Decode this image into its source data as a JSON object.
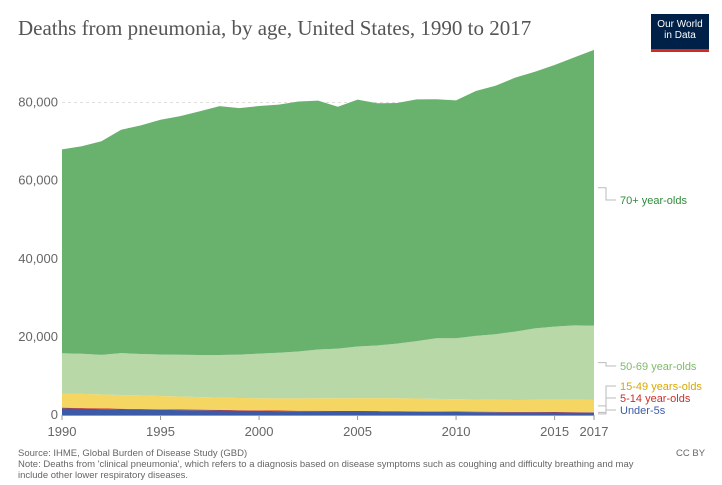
{
  "title": "Deaths from pneumonia, by age, United States, 1990 to 2017",
  "logo": {
    "line1": "Our World",
    "line2": "in Data"
  },
  "source": "Source: IHME, Global Burden of Disease Study (GBD)",
  "note": "Note: Deaths from 'clinical pneumonia', which refers to a diagnosis based on disease symptoms such as coughing and difficulty breathing and may include other lower respiratory diseases.",
  "license": "CC BY",
  "chart_data": {
    "type": "area",
    "stacked": true,
    "title": "Deaths from pneumonia, by age, United States, 1990 to 2017",
    "xlabel": "",
    "ylabel": "",
    "x": [
      1990,
      1991,
      1992,
      1993,
      1994,
      1995,
      1996,
      1997,
      1998,
      1999,
      2000,
      2001,
      2002,
      2003,
      2004,
      2005,
      2006,
      2007,
      2008,
      2009,
      2010,
      2011,
      2012,
      2013,
      2014,
      2015,
      2016,
      2017
    ],
    "xticks": [
      1990,
      1995,
      2000,
      2005,
      2010,
      2015,
      2017
    ],
    "yticks": [
      0,
      20000,
      40000,
      60000,
      80000
    ],
    "ytick_labels": [
      "0",
      "20,000",
      "40,000",
      "60,000",
      "80,000"
    ],
    "ylim": [
      0,
      96000
    ],
    "grid": true,
    "legend": "right, inline labels",
    "series": [
      {
        "name": "Under-5s",
        "color": "#3b5aa8",
        "values": [
          1700,
          1600,
          1500,
          1400,
          1350,
          1300,
          1250,
          1200,
          1150,
          1100,
          1050,
          1000,
          950,
          930,
          910,
          890,
          870,
          850,
          830,
          800,
          760,
          730,
          700,
          680,
          660,
          640,
          620,
          600
        ]
      },
      {
        "name": "5-14 year-olds",
        "color": "#c8302c",
        "values": [
          200,
          195,
          190,
          185,
          180,
          175,
          170,
          165,
          160,
          155,
          150,
          148,
          146,
          144,
          142,
          140,
          138,
          136,
          134,
          132,
          130,
          128,
          126,
          124,
          122,
          120,
          118,
          116
        ]
      },
      {
        "name": "15-49 years-olds",
        "color": "#f5d663",
        "values": [
          3500,
          3600,
          3600,
          3550,
          3500,
          3400,
          3300,
          3200,
          3150,
          3100,
          3100,
          3100,
          3150,
          3200,
          3250,
          3300,
          3300,
          3300,
          3250,
          3200,
          3150,
          3100,
          3050,
          3050,
          3100,
          3150,
          3200,
          3250
        ]
      },
      {
        "name": "50-69 year-olds",
        "color": "#b8d8a7",
        "values": [
          10400,
          10300,
          10100,
          10700,
          10600,
          10600,
          10700,
          10800,
          10900,
          11100,
          11400,
          11700,
          12000,
          12500,
          12700,
          13200,
          13500,
          14000,
          14700,
          15500,
          15600,
          16300,
          16800,
          17500,
          18300,
          18700,
          19000,
          18900
        ]
      },
      {
        "name": "70+ year-olds",
        "color": "#69b26e",
        "values": [
          52200,
          53100,
          54700,
          57200,
          58500,
          60100,
          61100,
          62400,
          63700,
          63100,
          63400,
          63500,
          64000,
          63700,
          61900,
          63200,
          62000,
          61600,
          61900,
          61200,
          60900,
          62700,
          63600,
          65000,
          65700,
          67000,
          68600,
          70600
        ]
      }
    ]
  }
}
